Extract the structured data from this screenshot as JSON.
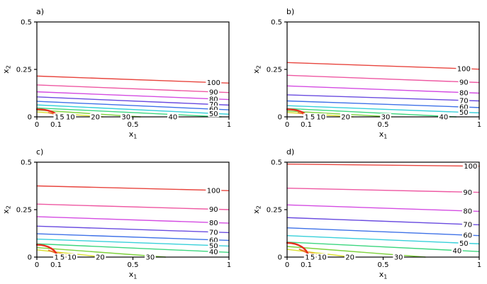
{
  "figure": {
    "background": "#ffffff"
  },
  "chart_data": {
    "type": "contour",
    "title": "",
    "layout": {
      "rows": 2,
      "cols": 2,
      "grid": false,
      "legend": "none",
      "label_style": "inline-on-line"
    },
    "axes": {
      "xlabel_base": "x",
      "xlabel_sub": "1",
      "ylabel_base": "x",
      "ylabel_sub": "2",
      "xlim": [
        0,
        1
      ],
      "ylim": [
        0,
        0.5
      ],
      "x_ticks": [
        {
          "v": 0,
          "label": "0"
        },
        {
          "v": 0.1,
          "label": "0.1"
        },
        {
          "v": 0.5,
          "label": "0.5"
        },
        {
          "v": 1,
          "label": "1"
        }
      ],
      "y_ticks": [
        {
          "v": 0,
          "label": "0"
        },
        {
          "v": 0.25,
          "label": "0.25"
        },
        {
          "v": 0.5,
          "label": "0.5"
        }
      ]
    },
    "contour_levels": [
      1,
      5,
      10,
      20,
      30,
      40,
      50,
      60,
      70,
      80,
      90,
      100
    ],
    "level_colors": {
      "100": "#e8453e",
      "90": "#ee58a2",
      "80": "#d44ce2",
      "70": "#6a4ce0",
      "60": "#3f72e8",
      "50": "#38d0da",
      "40": "#3cd67f",
      "30": "#7ed23c",
      "20": "#dade2e",
      "10": "#eea03a",
      "5": "#e4702a",
      "1": "#e62e1e"
    },
    "panels": [
      {
        "id": "a",
        "title": "a)",
        "contours": [
          {
            "level": 100,
            "type": "span",
            "y_left": 0.215,
            "y_right": 0.178,
            "label_x": 0.92
          },
          {
            "level": 90,
            "type": "span",
            "y_left": 0.168,
            "y_right": 0.128,
            "label_x": 0.92
          },
          {
            "level": 80,
            "type": "span",
            "y_left": 0.132,
            "y_right": 0.091,
            "label_x": 0.92
          },
          {
            "level": 70,
            "type": "span",
            "y_left": 0.105,
            "y_right": 0.062,
            "label_x": 0.92
          },
          {
            "level": 60,
            "type": "span",
            "y_left": 0.082,
            "y_right": 0.037,
            "label_x": 0.92
          },
          {
            "level": 50,
            "type": "span",
            "y_left": 0.063,
            "y_right": 0.014,
            "label_x": 0.92
          },
          {
            "level": 40,
            "type": "drop",
            "y_left": 0.047,
            "x_bottom": 0.96,
            "label_x": 0.708
          },
          {
            "level": 30,
            "type": "drop",
            "y_left": 0.036,
            "x_bottom": 0.54,
            "label_x": 0.464
          },
          {
            "level": 20,
            "type": "drop",
            "y_left": 0.026,
            "x_bottom": 0.345,
            "label_x": 0.305
          },
          {
            "level": 10,
            "type": "peel",
            "x_bottom": 0.185,
            "label_x": 0.175
          },
          {
            "level": 5,
            "type": "peel",
            "x_bottom": 0.142,
            "label_x": 0.131
          },
          {
            "level": 1,
            "type": "corner",
            "y_left": 0.04,
            "x_bottom": 0.105,
            "label_x": 0.104,
            "thick": true
          }
        ]
      },
      {
        "id": "b",
        "title": "b)",
        "contours": [
          {
            "level": 100,
            "type": "span",
            "y_left": 0.286,
            "y_right": 0.251,
            "label_x": 0.92
          },
          {
            "level": 90,
            "type": "span",
            "y_left": 0.219,
            "y_right": 0.181,
            "label_x": 0.92
          },
          {
            "level": 80,
            "type": "span",
            "y_left": 0.163,
            "y_right": 0.125,
            "label_x": 0.92
          },
          {
            "level": 70,
            "type": "span",
            "y_left": 0.116,
            "y_right": 0.084,
            "label_x": 0.92
          },
          {
            "level": 60,
            "type": "span",
            "y_left": 0.084,
            "y_right": 0.049,
            "label_x": 0.92
          },
          {
            "level": 50,
            "type": "span",
            "y_left": 0.059,
            "y_right": 0.021,
            "label_x": 0.92
          },
          {
            "level": 40,
            "type": "drop",
            "y_left": 0.044,
            "x_bottom": 0.88,
            "label_x": 0.815
          },
          {
            "level": 30,
            "type": "drop",
            "y_left": 0.031,
            "x_bottom": 0.545,
            "label_x": 0.513
          },
          {
            "level": 20,
            "type": "drop",
            "y_left": 0.023,
            "x_bottom": 0.345,
            "label_x": 0.305
          },
          {
            "level": 10,
            "type": "peel",
            "x_bottom": 0.19,
            "label_x": 0.176
          },
          {
            "level": 5,
            "type": "peel",
            "x_bottom": 0.145,
            "label_x": 0.133
          },
          {
            "level": 1,
            "type": "corner",
            "y_left": 0.04,
            "x_bottom": 0.1,
            "label_x": 0.102,
            "thick": true
          }
        ]
      },
      {
        "id": "c",
        "title": "c)",
        "contours": [
          {
            "level": 100,
            "type": "span",
            "y_left": 0.375,
            "y_right": 0.35,
            "label_x": 0.92
          },
          {
            "level": 90,
            "type": "span",
            "y_left": 0.279,
            "y_right": 0.25,
            "label_x": 0.92
          },
          {
            "level": 80,
            "type": "span",
            "y_left": 0.213,
            "y_right": 0.179,
            "label_x": 0.92
          },
          {
            "level": 70,
            "type": "span",
            "y_left": 0.163,
            "y_right": 0.129,
            "label_x": 0.92
          },
          {
            "level": 60,
            "type": "span",
            "y_left": 0.123,
            "y_right": 0.088,
            "label_x": 0.92
          },
          {
            "level": 50,
            "type": "span",
            "y_left": 0.095,
            "y_right": 0.058,
            "label_x": 0.92
          },
          {
            "level": 40,
            "type": "span",
            "y_left": 0.07,
            "y_right": 0.025,
            "label_x": 0.92
          },
          {
            "level": 30,
            "type": "drop",
            "y_left": 0.05,
            "x_bottom": 0.67,
            "label_x": 0.59
          },
          {
            "level": 20,
            "type": "drop",
            "y_left": 0.038,
            "x_bottom": 0.345,
            "label_x": 0.33
          },
          {
            "level": 10,
            "type": "peel",
            "x_bottom": 0.2,
            "label_x": 0.182
          },
          {
            "level": 5,
            "type": "peel",
            "x_bottom": 0.152,
            "label_x": 0.133
          },
          {
            "level": 1,
            "type": "corner",
            "y_left": 0.065,
            "x_bottom": 0.105,
            "label_x": 0.102,
            "thick": true
          }
        ]
      },
      {
        "id": "d",
        "title": "d)",
        "contours": [
          {
            "level": 100,
            "type": "span",
            "y_left": 0.49,
            "y_right": 0.479,
            "label_x": 0.955
          },
          {
            "level": 90,
            "type": "span",
            "y_left": 0.363,
            "y_right": 0.341,
            "label_x": 0.94
          },
          {
            "level": 80,
            "type": "span",
            "y_left": 0.275,
            "y_right": 0.241,
            "label_x": 0.94
          },
          {
            "level": 70,
            "type": "span",
            "y_left": 0.208,
            "y_right": 0.17,
            "label_x": 0.94
          },
          {
            "level": 60,
            "type": "span",
            "y_left": 0.154,
            "y_right": 0.113,
            "label_x": 0.94
          },
          {
            "level": 50,
            "type": "span",
            "y_left": 0.113,
            "y_right": 0.07,
            "label_x": 0.92
          },
          {
            "level": 40,
            "type": "span",
            "y_left": 0.079,
            "y_right": 0.029,
            "label_x": 0.885
          },
          {
            "level": 30,
            "type": "drop",
            "y_left": 0.056,
            "x_bottom": 0.72,
            "label_x": 0.58
          },
          {
            "level": 20,
            "type": "drop",
            "y_left": 0.041,
            "x_bottom": 0.335,
            "label_x": 0.327
          },
          {
            "level": 10,
            "type": "peel",
            "x_bottom": 0.2,
            "label_x": 0.182
          },
          {
            "level": 5,
            "type": "peel",
            "x_bottom": 0.15,
            "label_x": 0.133
          },
          {
            "level": 1,
            "type": "corner",
            "y_left": 0.075,
            "x_bottom": 0.11,
            "label_x": 0.105,
            "thick": true
          }
        ]
      }
    ]
  }
}
